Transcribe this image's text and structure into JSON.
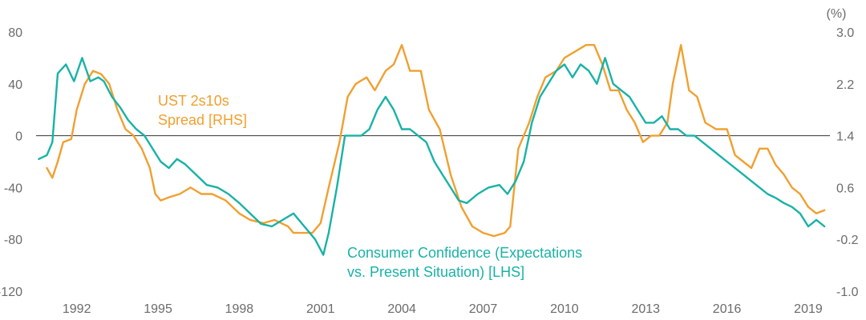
{
  "chart_data": {
    "type": "line",
    "title": "",
    "xlabel": "",
    "ylabel_left": "",
    "ylabel_right": "(%)",
    "xlim": [
      1990.5,
      2019.8
    ],
    "ylim_left": [
      -120,
      80
    ],
    "ylim_right": [
      -1.0,
      3.0
    ],
    "x_ticks": [
      1992,
      1995,
      1998,
      2001,
      2004,
      2007,
      2010,
      2013,
      2016,
      2019
    ],
    "x_tick_labels": [
      "1992",
      "1995",
      "1998",
      "2001",
      "2004",
      "2007",
      "2010",
      "2013",
      "2016",
      "2019"
    ],
    "y_left_ticks": [
      80,
      40,
      0,
      -40,
      -80,
      -120
    ],
    "y_left_tick_labels": [
      "80",
      "40",
      "0",
      "-40",
      "-80",
      "-120"
    ],
    "y_right_ticks": [
      3.0,
      2.2,
      1.4,
      0.6,
      -0.2,
      -1.0
    ],
    "y_right_tick_labels": [
      "3.0",
      "2.2",
      "1.4",
      "0.6",
      "-0.2",
      "-1.0"
    ],
    "zero_line_left": 0,
    "grid": false,
    "colors": {
      "ust": "#f0a030",
      "confidence": "#19b2a6",
      "zero_line": "#333333",
      "ticks": "#6b6b6b"
    },
    "series": [
      {
        "key": "ust",
        "axis": "right",
        "color": "#f0a030",
        "annotation_lines": [
          "UST 2s10s",
          "Spread [RHS]"
        ],
        "x": [
          1990.9,
          1991.1,
          1991.3,
          1991.5,
          1991.8,
          1992.0,
          1992.3,
          1992.6,
          1992.9,
          1993.2,
          1993.5,
          1993.8,
          1994.1,
          1994.4,
          1994.7,
          1994.9,
          1995.1,
          1995.4,
          1995.8,
          1996.2,
          1996.6,
          1997.0,
          1997.5,
          1998.0,
          1998.4,
          1998.9,
          1999.3,
          1999.8,
          2000.0,
          2000.3,
          2000.7,
          2001.0,
          2001.3,
          2001.7,
          2002.0,
          2002.3,
          2002.7,
          2003.0,
          2003.4,
          2003.7,
          2004.0,
          2004.3,
          2004.7,
          2005.0,
          2005.4,
          2005.8,
          2006.2,
          2006.6,
          2007.0,
          2007.4,
          2007.8,
          2008.0,
          2008.3,
          2008.7,
          2009.0,
          2009.3,
          2009.7,
          2010.0,
          2010.4,
          2010.8,
          2011.1,
          2011.4,
          2011.7,
          2012.0,
          2012.3,
          2012.6,
          2012.9,
          2013.2,
          2013.5,
          2013.8,
          2014.0,
          2014.3,
          2014.6,
          2014.9,
          2015.2,
          2015.6,
          2016.0,
          2016.3,
          2016.6,
          2016.9,
          2017.2,
          2017.5,
          2017.8,
          2018.1,
          2018.4,
          2018.7,
          2019.0,
          2019.3,
          2019.6
        ],
        "y": [
          0.9,
          0.75,
          1.0,
          1.3,
          1.35,
          1.8,
          2.2,
          2.4,
          2.35,
          2.2,
          1.8,
          1.5,
          1.4,
          1.2,
          0.9,
          0.5,
          0.4,
          0.45,
          0.5,
          0.6,
          0.5,
          0.5,
          0.4,
          0.2,
          0.1,
          0.05,
          0.1,
          0.0,
          -0.1,
          -0.1,
          -0.1,
          0.05,
          0.6,
          1.3,
          2.0,
          2.2,
          2.3,
          2.1,
          2.4,
          2.5,
          2.8,
          2.4,
          2.4,
          1.8,
          1.5,
          0.8,
          0.3,
          0.0,
          -0.1,
          -0.15,
          -0.1,
          0.0,
          1.2,
          1.6,
          2.0,
          2.3,
          2.4,
          2.6,
          2.7,
          2.8,
          2.8,
          2.5,
          2.1,
          2.1,
          1.8,
          1.6,
          1.3,
          1.4,
          1.4,
          1.6,
          2.2,
          2.8,
          2.1,
          2.0,
          1.6,
          1.5,
          1.5,
          1.1,
          1.0,
          0.9,
          1.2,
          1.2,
          0.95,
          0.8,
          0.6,
          0.5,
          0.3,
          0.2,
          0.25
        ]
      },
      {
        "key": "confidence",
        "axis": "left",
        "color": "#19b2a6",
        "annotation_lines": [
          "Consumer Confidence (Expectations",
          "vs. Present Situation) [LHS]"
        ],
        "x": [
          1990.6,
          1990.9,
          1991.1,
          1991.3,
          1991.6,
          1991.9,
          1992.2,
          1992.5,
          1992.8,
          1993.0,
          1993.3,
          1993.6,
          1993.9,
          1994.2,
          1994.5,
          1994.8,
          1995.1,
          1995.4,
          1995.7,
          1996.0,
          1996.4,
          1996.8,
          1997.2,
          1997.6,
          1998.0,
          1998.4,
          1998.8,
          1999.2,
          1999.6,
          2000.0,
          2000.4,
          2000.8,
          2001.1,
          2001.3,
          2001.6,
          2001.9,
          2002.2,
          2002.5,
          2002.8,
          2003.1,
          2003.4,
          2003.7,
          2004.0,
          2004.3,
          2004.6,
          2004.9,
          2005.2,
          2005.5,
          2005.8,
          2006.1,
          2006.4,
          2006.8,
          2007.2,
          2007.6,
          2007.9,
          2008.2,
          2008.5,
          2008.8,
          2009.1,
          2009.4,
          2009.7,
          2010.0,
          2010.3,
          2010.6,
          2010.9,
          2011.2,
          2011.5,
          2011.8,
          2012.1,
          2012.4,
          2012.7,
          2013.0,
          2013.3,
          2013.6,
          2013.9,
          2014.2,
          2014.5,
          2014.8,
          2015.1,
          2015.4,
          2015.7,
          2016.0,
          2016.3,
          2016.6,
          2016.9,
          2017.2,
          2017.5,
          2017.8,
          2018.1,
          2018.4,
          2018.7,
          2019.0,
          2019.3,
          2019.6
        ],
        "y": [
          -18,
          -15,
          -5,
          48,
          55,
          42,
          60,
          42,
          45,
          42,
          30,
          22,
          12,
          5,
          0,
          -10,
          -20,
          -25,
          -18,
          -22,
          -30,
          -38,
          -40,
          -45,
          -52,
          -60,
          -68,
          -70,
          -65,
          -60,
          -70,
          -80,
          -92,
          -75,
          -40,
          0,
          0,
          0,
          5,
          20,
          30,
          20,
          5,
          5,
          0,
          -5,
          -20,
          -30,
          -40,
          -50,
          -52,
          -45,
          -40,
          -38,
          -45,
          -35,
          -20,
          10,
          30,
          40,
          50,
          55,
          45,
          55,
          50,
          40,
          60,
          40,
          35,
          30,
          20,
          10,
          10,
          15,
          5,
          5,
          0,
          0,
          -5,
          -10,
          -15,
          -20,
          -25,
          -30,
          -35,
          -40,
          -45,
          -48,
          -52,
          -55,
          -60,
          -70,
          -65,
          -70
        ]
      }
    ]
  }
}
